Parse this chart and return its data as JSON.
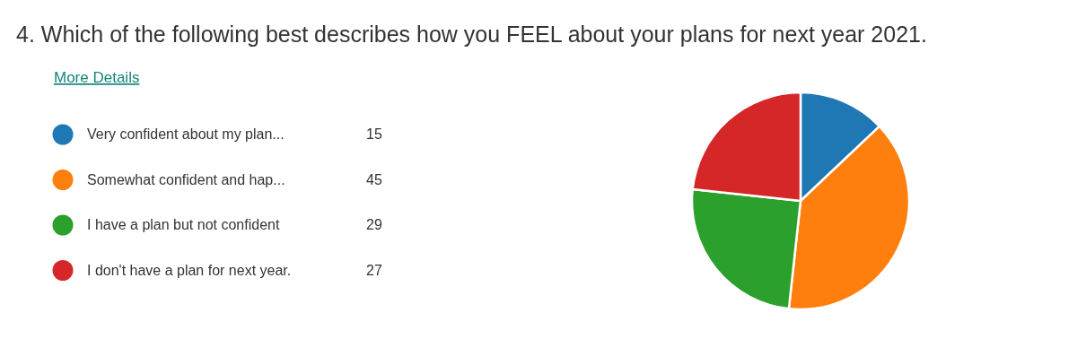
{
  "chart_data": {
    "type": "pie",
    "title": "4.  Which of the following best describes how you FEEL about your plans for next year 2021.",
    "annotations": [
      "More Details"
    ],
    "categories": [
      "Very confident about my plan...",
      "Somewhat confident and hap...",
      "I have a plan but not confident",
      "I don't have a plan for next year."
    ],
    "values": [
      15,
      45,
      29,
      27
    ],
    "colors": [
      "#1f77b4",
      "#ff7f0e",
      "#2ca02c",
      "#d62728"
    ],
    "legend": "left",
    "data_labels": true
  }
}
